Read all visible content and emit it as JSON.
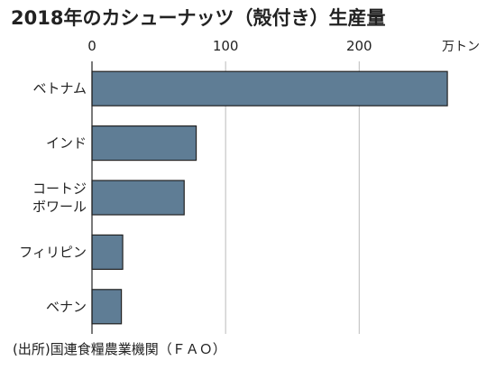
{
  "chart_data": {
    "type": "bar",
    "orientation": "horizontal",
    "title": "2018年のカシューナッツ（殻付き）生産量",
    "unit": "万トン",
    "xlim": [
      0,
      270
    ],
    "xticks": [
      0,
      100,
      200
    ],
    "categories": [
      "ベトナム",
      "インド",
      "コートジボワール",
      "フィリピン",
      "ベナン"
    ],
    "category_lines": [
      [
        "ベトナム"
      ],
      [
        "インド"
      ],
      [
        "コートジ",
        "ボワール"
      ],
      [
        "フィリピン"
      ],
      [
        "ベナン"
      ]
    ],
    "values": [
      266,
      78,
      69,
      23,
      22
    ],
    "bar_color": "#5f7d95",
    "grid": true,
    "source": "(出所)国連食糧農業機関（ＦＡＯ）"
  }
}
